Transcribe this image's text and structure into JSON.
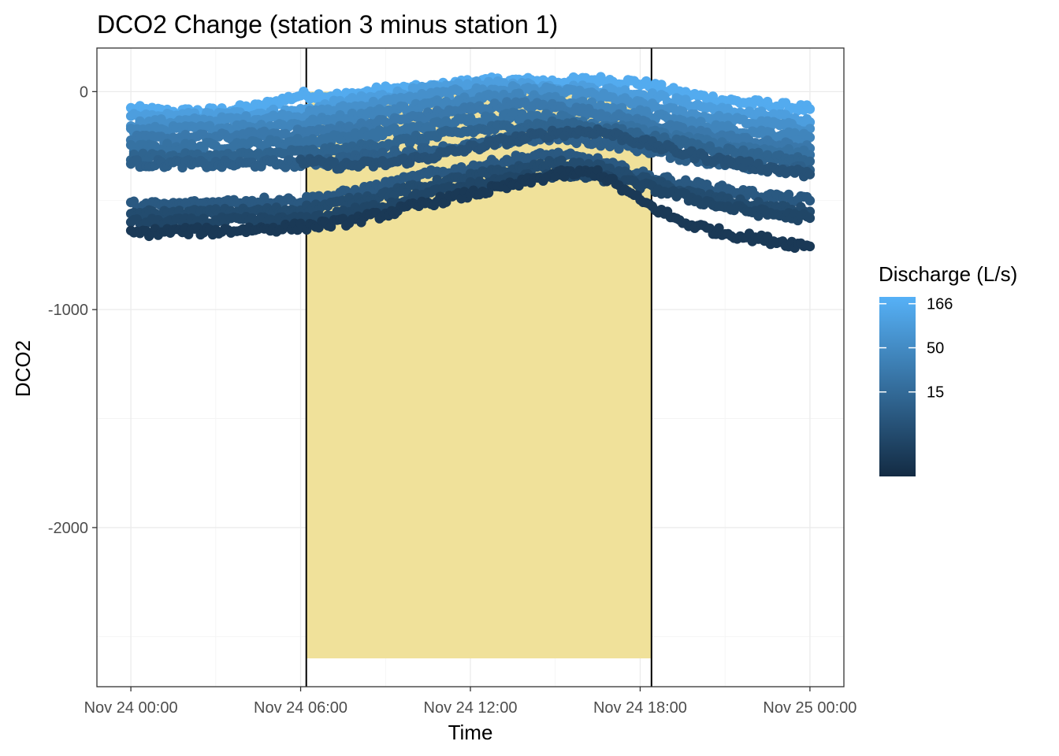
{
  "chart_data": {
    "type": "scatter",
    "title": "DCO2 Change (station 3 minus station 1)",
    "xlabel": "Time",
    "ylabel": "DCO2",
    "x_range": [
      "2021-11-23T22:48",
      "2021-11-25T01:12"
    ],
    "x_ticks": [
      "Nov 24 00:00",
      "Nov 24 06:00",
      "Nov 24 12:00",
      "Nov 24 18:00",
      "Nov 25 00:00"
    ],
    "y_range": [
      -2730,
      200
    ],
    "y_ticks": [
      0,
      -1000,
      -2000
    ],
    "grid": true,
    "daylight_period": {
      "start": "2021-11-24T06:12",
      "end": "2021-11-24T18:24",
      "ymin": -2600,
      "ymax": 0,
      "fill": "#F0E19A",
      "line_color": "#000000"
    },
    "color_scale": {
      "title": "Discharge (L/s)",
      "breaks": [
        166,
        50,
        15
      ],
      "transform": "log",
      "low_value": 1.5,
      "high_value": 200,
      "low_color": "#132B43",
      "high_color": "#56B1F7",
      "legend_position": "right"
    },
    "series": [
      {
        "discharge": 160,
        "values": [
          [
            0.0,
            -80
          ],
          [
            1.5,
            -95
          ],
          [
            3.0,
            -90
          ],
          [
            4.5,
            -70
          ],
          [
            6.0,
            -15
          ],
          [
            7.5,
            -20
          ],
          [
            9.0,
            10
          ],
          [
            10.5,
            15
          ],
          [
            12.0,
            45
          ],
          [
            13.5,
            50
          ],
          [
            15.0,
            45
          ],
          [
            16.5,
            55
          ],
          [
            18.0,
            40
          ],
          [
            19.5,
            -10
          ],
          [
            21.0,
            -40
          ],
          [
            22.5,
            -60
          ],
          [
            24.0,
            -80
          ]
        ]
      },
      {
        "discharge": 100,
        "values": [
          [
            0.0,
            -120
          ],
          [
            1.5,
            -115
          ],
          [
            3.0,
            -110
          ],
          [
            4.5,
            -100
          ],
          [
            6.0,
            -90
          ],
          [
            7.5,
            -50
          ],
          [
            9.0,
            -20
          ],
          [
            10.5,
            10
          ],
          [
            12.0,
            30
          ],
          [
            13.5,
            30
          ],
          [
            15.0,
            20
          ],
          [
            16.5,
            10
          ],
          [
            18.0,
            -10
          ],
          [
            19.5,
            -50
          ],
          [
            21.0,
            -90
          ],
          [
            22.5,
            -110
          ],
          [
            24.0,
            -140
          ]
        ]
      },
      {
        "discharge": 60,
        "values": [
          [
            0.0,
            -150
          ],
          [
            1.5,
            -140
          ],
          [
            3.0,
            -135
          ],
          [
            4.5,
            -125
          ],
          [
            6.0,
            -110
          ],
          [
            7.5,
            -80
          ],
          [
            9.0,
            -50
          ],
          [
            10.5,
            -20
          ],
          [
            12.0,
            0
          ],
          [
            13.5,
            10
          ],
          [
            15.0,
            0
          ],
          [
            16.5,
            -20
          ],
          [
            18.0,
            -60
          ],
          [
            19.5,
            -100
          ],
          [
            21.0,
            -130
          ],
          [
            22.5,
            -150
          ],
          [
            24.0,
            -170
          ]
        ]
      },
      {
        "discharge": 40,
        "values": [
          [
            0.0,
            -180
          ],
          [
            1.5,
            -175
          ],
          [
            3.0,
            -170
          ],
          [
            4.5,
            -160
          ],
          [
            6.0,
            -150
          ],
          [
            7.5,
            -120
          ],
          [
            9.0,
            -90
          ],
          [
            10.5,
            -60
          ],
          [
            12.0,
            -30
          ],
          [
            13.5,
            -20
          ],
          [
            15.0,
            -40
          ],
          [
            16.5,
            -70
          ],
          [
            18.0,
            -100
          ],
          [
            19.5,
            -140
          ],
          [
            21.0,
            -170
          ],
          [
            22.5,
            -190
          ],
          [
            24.0,
            -210
          ]
        ]
      },
      {
        "discharge": 25,
        "values": [
          [
            0.0,
            -220
          ],
          [
            1.5,
            -215
          ],
          [
            3.0,
            -210
          ],
          [
            4.5,
            -200
          ],
          [
            6.0,
            -190
          ],
          [
            7.5,
            -170
          ],
          [
            9.0,
            -140
          ],
          [
            10.5,
            -110
          ],
          [
            12.0,
            -80
          ],
          [
            13.5,
            -60
          ],
          [
            15.0,
            -70
          ],
          [
            16.5,
            -100
          ],
          [
            18.0,
            -140
          ],
          [
            19.5,
            -180
          ],
          [
            21.0,
            -210
          ],
          [
            22.5,
            -240
          ],
          [
            24.0,
            -260
          ]
        ]
      },
      {
        "discharge": 20,
        "values": [
          [
            0.0,
            -260
          ],
          [
            1.5,
            -255
          ],
          [
            3.0,
            -250
          ],
          [
            4.5,
            -240
          ],
          [
            6.0,
            -230
          ],
          [
            7.5,
            -210
          ],
          [
            9.0,
            -190
          ],
          [
            10.5,
            -160
          ],
          [
            12.0,
            -130
          ],
          [
            13.5,
            -110
          ],
          [
            15.0,
            -120
          ],
          [
            16.5,
            -150
          ],
          [
            18.0,
            -180
          ],
          [
            19.5,
            -220
          ],
          [
            21.0,
            -250
          ],
          [
            22.5,
            -270
          ],
          [
            24.0,
            -290
          ]
        ]
      },
      {
        "discharge": 12,
        "values": [
          [
            0.0,
            -300
          ],
          [
            1.5,
            -300
          ],
          [
            3.0,
            -300
          ],
          [
            4.5,
            -290
          ],
          [
            6.0,
            -280
          ],
          [
            7.5,
            -270
          ],
          [
            9.0,
            -240
          ],
          [
            10.5,
            -210
          ],
          [
            12.0,
            -180
          ],
          [
            13.5,
            -160
          ],
          [
            15.0,
            -150
          ],
          [
            16.5,
            -170
          ],
          [
            18.0,
            -200
          ],
          [
            19.5,
            -240
          ],
          [
            21.0,
            -270
          ],
          [
            22.5,
            -300
          ],
          [
            24.0,
            -320
          ]
        ]
      },
      {
        "discharge": 10,
        "values": [
          [
            0.0,
            -330
          ],
          [
            1.5,
            -330
          ],
          [
            3.0,
            -335
          ],
          [
            4.5,
            -330
          ],
          [
            6.0,
            -330
          ],
          [
            7.5,
            -310
          ],
          [
            9.0,
            -290
          ],
          [
            10.5,
            -270
          ],
          [
            12.0,
            -250
          ],
          [
            13.5,
            -220
          ],
          [
            15.0,
            -210
          ],
          [
            16.5,
            -230
          ],
          [
            18.0,
            -260
          ],
          [
            19.5,
            -300
          ],
          [
            21.0,
            -330
          ],
          [
            22.5,
            -350
          ],
          [
            24.0,
            -360
          ]
        ]
      },
      {
        "discharge": 6,
        "values": [
          [
            6.0,
            -320
          ],
          [
            7.5,
            -340
          ],
          [
            9.0,
            -330
          ],
          [
            10.5,
            -300
          ],
          [
            12.0,
            -260
          ],
          [
            13.5,
            -220
          ],
          [
            15.0,
            -190
          ],
          [
            16.5,
            -180
          ],
          [
            18.0,
            -230
          ],
          [
            19.5,
            -280
          ],
          [
            21.0,
            -320
          ],
          [
            22.5,
            -350
          ],
          [
            24.0,
            -380
          ]
        ]
      },
      {
        "discharge": 8,
        "values": [
          [
            0.0,
            -520
          ],
          [
            1.5,
            -520
          ],
          [
            3.0,
            -510
          ],
          [
            4.5,
            -500
          ],
          [
            6.0,
            -500
          ],
          [
            7.5,
            -470
          ],
          [
            9.0,
            -430
          ],
          [
            10.5,
            -380
          ],
          [
            12.0,
            -350
          ],
          [
            13.5,
            -310
          ],
          [
            15.0,
            -290
          ],
          [
            16.5,
            -320
          ],
          [
            18.0,
            -380
          ],
          [
            19.5,
            -420
          ],
          [
            21.0,
            -450
          ],
          [
            22.5,
            -480
          ],
          [
            24.0,
            -500
          ]
        ]
      },
      {
        "discharge": 5,
        "values": [
          [
            0.0,
            -560
          ],
          [
            1.5,
            -560
          ],
          [
            3.0,
            -555
          ],
          [
            4.5,
            -550
          ],
          [
            6.0,
            -540
          ],
          [
            7.5,
            -510
          ],
          [
            9.0,
            -470
          ],
          [
            10.5,
            -430
          ],
          [
            12.0,
            -390
          ],
          [
            13.5,
            -360
          ],
          [
            15.0,
            -330
          ],
          [
            16.5,
            -350
          ],
          [
            18.0,
            -400
          ],
          [
            19.5,
            -460
          ],
          [
            21.0,
            -500
          ],
          [
            22.5,
            -530
          ],
          [
            24.0,
            -550
          ]
        ]
      },
      {
        "discharge": 4,
        "values": [
          [
            0.0,
            -600
          ],
          [
            1.5,
            -600
          ],
          [
            3.0,
            -595
          ],
          [
            4.5,
            -590
          ],
          [
            6.0,
            -590
          ],
          [
            7.5,
            -560
          ],
          [
            9.0,
            -520
          ],
          [
            10.5,
            -470
          ],
          [
            12.0,
            -430
          ],
          [
            13.5,
            -400
          ],
          [
            15.0,
            -380
          ],
          [
            16.5,
            -390
          ],
          [
            18.0,
            -430
          ],
          [
            19.5,
            -480
          ],
          [
            21.0,
            -530
          ],
          [
            22.5,
            -560
          ],
          [
            24.0,
            -580
          ]
        ]
      },
      {
        "discharge": 2.5,
        "values": [
          [
            0.0,
            -650
          ],
          [
            1.5,
            -640
          ],
          [
            3.0,
            -640
          ],
          [
            4.5,
            -630
          ],
          [
            6.0,
            -620
          ],
          [
            7.5,
            -600
          ],
          [
            9.0,
            -560
          ],
          [
            10.5,
            -510
          ],
          [
            12.0,
            -470
          ],
          [
            13.5,
            -430
          ],
          [
            15.0,
            -380
          ],
          [
            16.5,
            -370
          ],
          [
            18.0,
            -500
          ],
          [
            19.5,
            -600
          ],
          [
            21.0,
            -650
          ],
          [
            22.5,
            -680
          ],
          [
            24.0,
            -710
          ]
        ]
      }
    ]
  }
}
